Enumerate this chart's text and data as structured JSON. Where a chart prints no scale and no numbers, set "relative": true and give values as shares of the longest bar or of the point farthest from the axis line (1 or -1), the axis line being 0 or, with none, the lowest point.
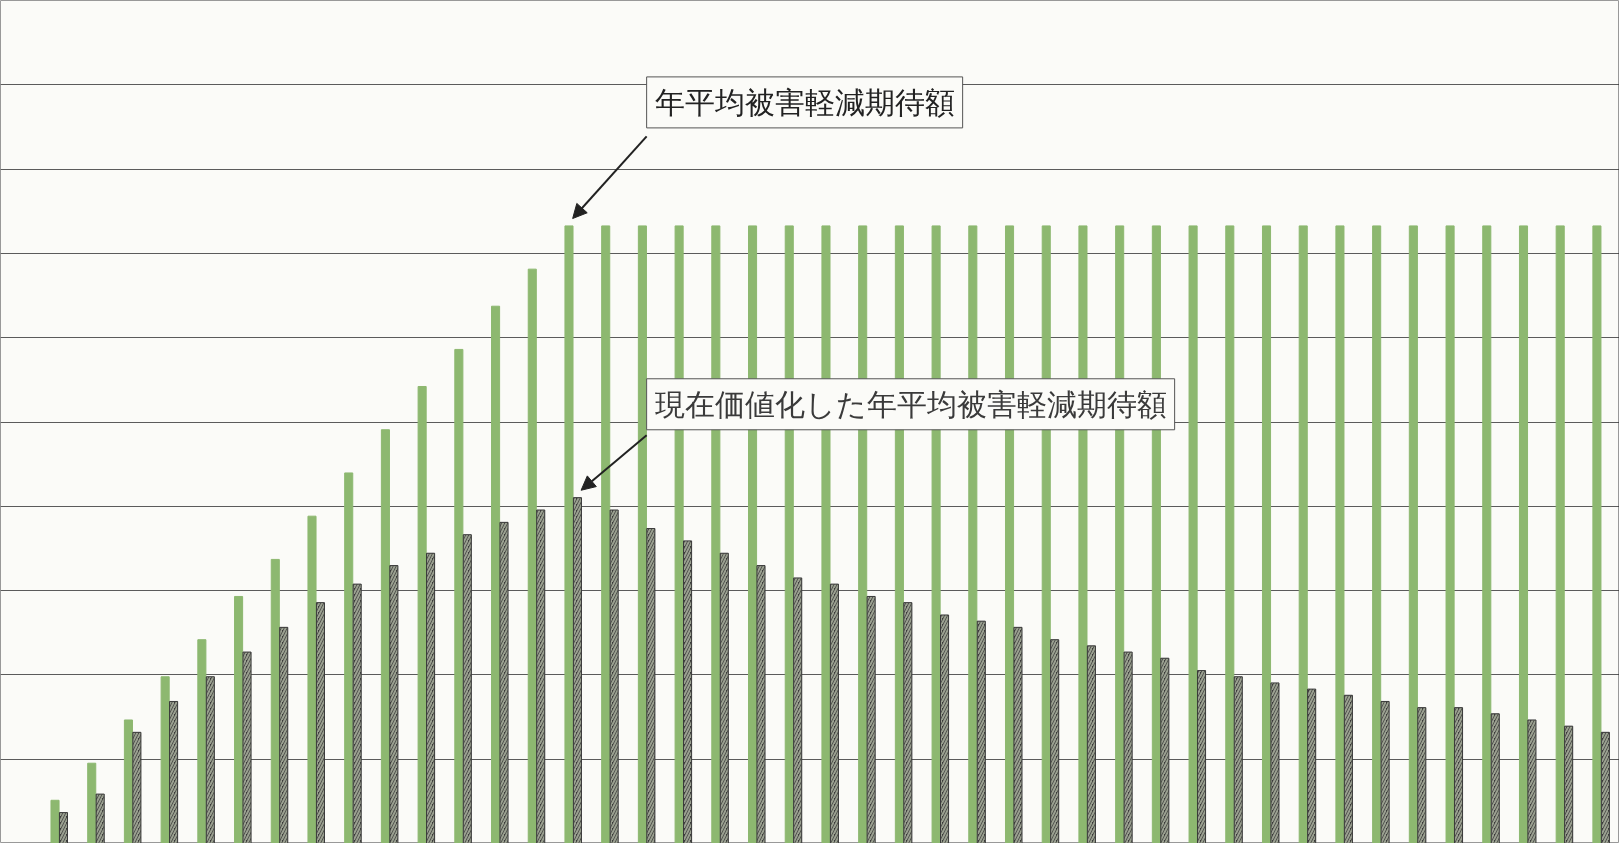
{
  "chart_data": {
    "type": "bar",
    "relative": true,
    "grid": "y",
    "categories": [
      null,
      null,
      null,
      null,
      null,
      null,
      null,
      null,
      null,
      null,
      null,
      null,
      null,
      null,
      null,
      null,
      null,
      null,
      null,
      null,
      null,
      null,
      null,
      null,
      null,
      null,
      null,
      null,
      null,
      null,
      null,
      null,
      null,
      null,
      null,
      null,
      null,
      null,
      null,
      null,
      null,
      null,
      null
    ],
    "series": [
      {
        "name": "年平均被害軽減期待額",
        "color": "#8db870",
        "values": [
          0.07,
          0.13,
          0.2,
          0.27,
          0.33,
          0.4,
          0.46,
          0.53,
          0.6,
          0.67,
          0.74,
          0.8,
          0.87,
          0.93,
          1.0,
          1.0,
          1.0,
          1.0,
          1.0,
          1.0,
          1.0,
          1.0,
          1.0,
          1.0,
          1.0,
          1.0,
          1.0,
          1.0,
          1.0,
          1.0,
          1.0,
          1.0,
          1.0,
          1.0,
          1.0,
          1.0,
          1.0,
          1.0,
          1.0,
          1.0,
          1.0,
          1.0,
          1.0
        ]
      },
      {
        "name": "現在価値化した年平均被害軽減期待額",
        "color": "#3a3a3a",
        "values": [
          0.05,
          0.08,
          0.18,
          0.23,
          0.27,
          0.31,
          0.35,
          0.39,
          0.42,
          0.45,
          0.47,
          0.5,
          0.52,
          0.54,
          0.56,
          0.54,
          0.51,
          0.49,
          0.47,
          0.45,
          0.43,
          0.42,
          0.4,
          0.39,
          0.37,
          0.36,
          0.35,
          0.33,
          0.32,
          0.31,
          0.3,
          0.28,
          0.27,
          0.26,
          0.25,
          0.24,
          0.23,
          0.22,
          0.22,
          0.21,
          0.2,
          0.19,
          0.18
        ]
      }
    ]
  }
}
